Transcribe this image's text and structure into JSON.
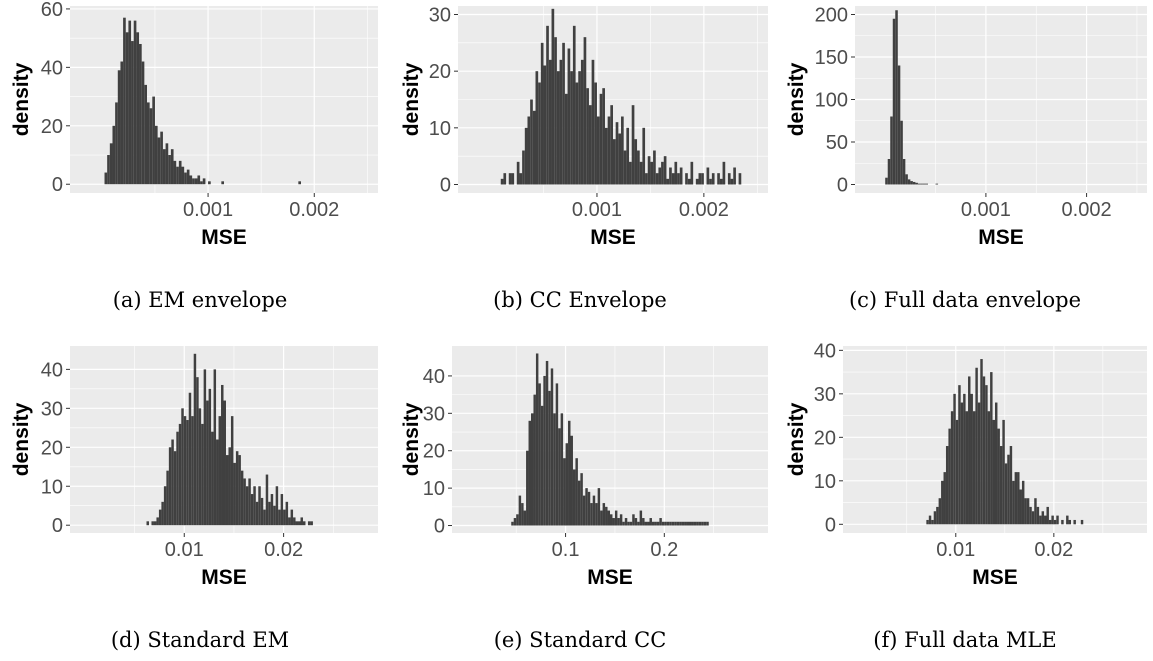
{
  "figure": {
    "captions": [
      "(a) EM envelope",
      "(b) CC Envelope",
      "(c) Full data envelope",
      "(d) Standard EM",
      "(e) Standard CC",
      "(f) Full data MLE"
    ]
  },
  "colors": {
    "panel_bg": "#ebebeb",
    "grid": "#ffffff",
    "bar": "#404040",
    "tick_text": "#4d4d4d"
  },
  "chart_data": [
    {
      "type": "bar",
      "chart": "histogram",
      "ylabel": "density",
      "xlabel": "MSE",
      "xlim": [
        -0.0003,
        0.0026
      ],
      "ylim": [
        -3,
        61
      ],
      "xticks": [
        0.001,
        0.002
      ],
      "xtick_labels": [
        "0.001",
        "0.002"
      ],
      "yticks": [
        0,
        20,
        40,
        60
      ],
      "ytick_labels": [
        "0",
        "20",
        "40",
        "60"
      ],
      "grid": true,
      "bin_start": 2.5e-05,
      "bin_width": 2.5e-05,
      "values": [
        4,
        10,
        14,
        20,
        28,
        39,
        42,
        57,
        52,
        56,
        49,
        56,
        52,
        48,
        42,
        34,
        28,
        26,
        30,
        20,
        16,
        18,
        12,
        14,
        10,
        12,
        8,
        6,
        8,
        6,
        4,
        5,
        3,
        2,
        2,
        3,
        1,
        2,
        0,
        1,
        0,
        0,
        0,
        0,
        1,
        0,
        0,
        0,
        0,
        0,
        0,
        0,
        0,
        0,
        0,
        0,
        0,
        0,
        0,
        0,
        0,
        0,
        0,
        0,
        0,
        0,
        0,
        0,
        0,
        0,
        0,
        0,
        0,
        1
      ]
    },
    {
      "type": "bar",
      "chart": "histogram",
      "ylabel": "density",
      "xlabel": "MSE",
      "xlim": [
        -0.0003,
        0.0026
      ],
      "ylim": [
        -1.5,
        31.5
      ],
      "xticks": [
        0.001,
        0.002
      ],
      "xtick_labels": [
        "0.001",
        "0.002"
      ],
      "yticks": [
        0,
        10,
        20,
        30
      ],
      "ytick_labels": [
        "0",
        "10",
        "20",
        "30"
      ],
      "grid": true,
      "bin_start": 0.0001,
      "bin_width": 2.5e-05,
      "values": [
        1,
        2,
        0,
        2,
        2,
        0,
        4,
        2,
        6,
        10,
        12,
        15,
        13,
        20,
        18,
        25,
        21,
        28,
        22,
        31,
        26,
        20,
        22,
        25,
        16,
        24,
        20,
        28,
        18,
        20,
        22,
        26,
        17,
        14,
        22,
        18,
        12,
        16,
        17,
        10,
        12,
        14,
        8,
        11,
        9,
        12,
        6,
        10,
        4,
        14,
        8,
        6,
        4,
        10,
        2,
        5,
        4,
        6,
        2,
        3,
        4,
        5,
        1,
        3,
        2,
        4,
        2,
        3,
        0,
        2,
        1,
        4,
        0,
        1,
        2,
        2,
        0,
        3,
        1,
        2,
        0,
        2,
        1,
        4,
        0,
        2,
        1,
        3,
        0,
        2
      ]
    },
    {
      "type": "bar",
      "chart": "histogram",
      "ylabel": "density",
      "xlabel": "MSE",
      "xlim": [
        -0.0003,
        0.0026
      ],
      "ylim": [
        -10,
        210
      ],
      "xticks": [
        0.001,
        0.002
      ],
      "xtick_labels": [
        "0.001",
        "0.002"
      ],
      "yticks": [
        0,
        50,
        100,
        150,
        200
      ],
      "ytick_labels": [
        "0",
        "50",
        "100",
        "150",
        "200"
      ],
      "grid": true,
      "bin_start": 0.0,
      "bin_width": 2.5e-05,
      "values": [
        8,
        30,
        80,
        195,
        205,
        140,
        75,
        30,
        12,
        6,
        4,
        3,
        2,
        1,
        1,
        1,
        1,
        0,
        0,
        0,
        1
      ]
    },
    {
      "type": "bar",
      "chart": "histogram",
      "ylabel": "density",
      "xlabel": "MSE",
      "xlim": [
        -0.0015,
        0.0295
      ],
      "ylim": [
        -2,
        46
      ],
      "xticks": [
        0.01,
        0.02
      ],
      "xtick_labels": [
        "0.01",
        "0.02"
      ],
      "yticks": [
        0,
        10,
        20,
        30,
        40
      ],
      "ytick_labels": [
        "0",
        "10",
        "20",
        "30",
        "40"
      ],
      "grid": true,
      "bin_start": 0.0062,
      "bin_width": 0.00025,
      "values": [
        1,
        0,
        1,
        1,
        2,
        4,
        6,
        10,
        14,
        20,
        22,
        19,
        24,
        26,
        30,
        28,
        27,
        34,
        28,
        44,
        38,
        30,
        26,
        40,
        32,
        35,
        24,
        40,
        22,
        28,
        36,
        32,
        18,
        20,
        28,
        16,
        19,
        18,
        14,
        12,
        10,
        12,
        8,
        10,
        6,
        10,
        7,
        4,
        13,
        6,
        8,
        5,
        10,
        4,
        8,
        4,
        6,
        2,
        4,
        2,
        1,
        1,
        2,
        1,
        0,
        1,
        1
      ]
    },
    {
      "type": "bar",
      "chart": "histogram",
      "ylabel": "density",
      "xlabel": "MSE",
      "xlim": [
        -0.015,
        0.305
      ],
      "ylim": [
        -2,
        48
      ],
      "xticks": [
        0.1,
        0.2
      ],
      "xtick_labels": [
        "0.1",
        "0.2"
      ],
      "yticks": [
        0,
        10,
        20,
        30,
        40
      ],
      "ytick_labels": [
        "0",
        "10",
        "20",
        "30",
        "40"
      ],
      "grid": true,
      "bin_start": 0.045,
      "bin_width": 0.0025,
      "values": [
        1,
        2,
        3,
        8,
        6,
        4,
        20,
        28,
        30,
        35,
        46,
        38,
        32,
        40,
        44,
        36,
        42,
        30,
        38,
        26,
        30,
        18,
        22,
        28,
        24,
        15,
        18,
        12,
        14,
        8,
        10,
        9,
        6,
        8,
        6,
        10,
        4,
        6,
        5,
        4,
        3,
        2,
        4,
        2,
        3,
        1,
        2,
        1,
        1,
        3,
        2,
        1,
        4,
        2,
        1,
        1,
        2,
        1,
        1,
        1,
        2,
        1,
        1,
        1,
        1,
        1,
        1,
        1,
        1,
        1,
        1,
        1,
        1,
        1,
        1,
        1,
        1,
        1,
        1,
        1
      ]
    },
    {
      "type": "bar",
      "chart": "histogram",
      "ylabel": "density",
      "xlabel": "MSE",
      "xlim": [
        -0.0015,
        0.0295
      ],
      "ylim": [
        -2,
        41
      ],
      "xticks": [
        0.01,
        0.02
      ],
      "xtick_labels": [
        "0.01",
        "0.02"
      ],
      "yticks": [
        0,
        10,
        20,
        30,
        40
      ],
      "ytick_labels": [
        "0",
        "10",
        "20",
        "30",
        "40"
      ],
      "grid": true,
      "bin_start": 0.007,
      "bin_width": 0.00025,
      "values": [
        1,
        2,
        1,
        3,
        4,
        6,
        10,
        12,
        18,
        22,
        26,
        30,
        24,
        32,
        28,
        30,
        26,
        34,
        30,
        26,
        36,
        28,
        38,
        34,
        32,
        26,
        35,
        24,
        28,
        22,
        18,
        24,
        14,
        16,
        18,
        10,
        12,
        12,
        8,
        10,
        6,
        6,
        4,
        3,
        6,
        4,
        2,
        3,
        2,
        4,
        1,
        2,
        1,
        2,
        0,
        1,
        0,
        2,
        1,
        0,
        1,
        0,
        0,
        1
      ]
    }
  ]
}
